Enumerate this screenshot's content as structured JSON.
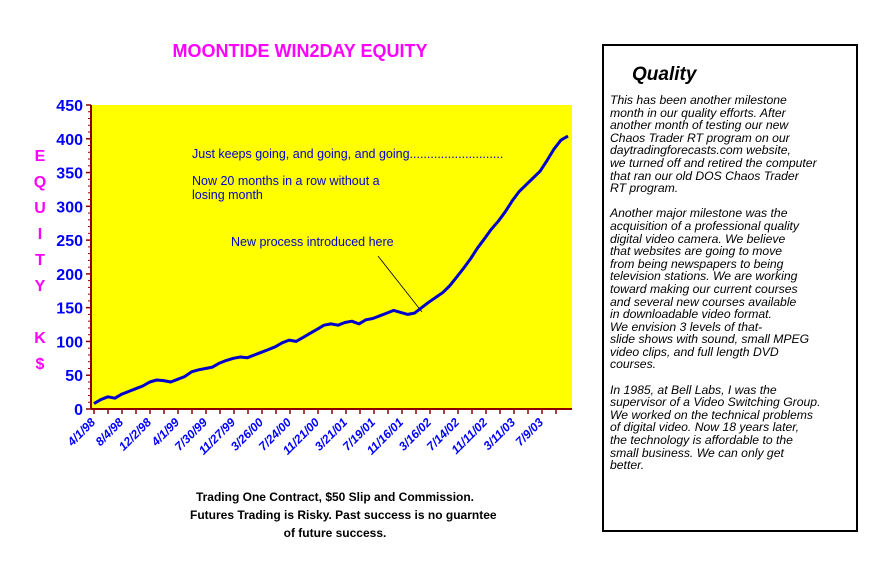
{
  "chart_data": {
    "type": "line",
    "title": "MOONTIDE WIN2DAY EQUITY",
    "ylabel_letters": [
      "E",
      "Q",
      "U",
      "I",
      "T",
      "Y",
      "",
      "K",
      "$"
    ],
    "ylim": [
      0,
      450
    ],
    "yticks": [
      "0",
      "50",
      "100",
      "150",
      "200",
      "250",
      "300",
      "350",
      "400",
      "450"
    ],
    "xtick_labels": [
      "4/1/98",
      "8/4/98",
      "12/2/98",
      "4/1/99",
      "7/30/99",
      "11/27/99",
      "3/26/00",
      "7/24/00",
      "11/21/00",
      "3/21/01",
      "7/19/01",
      "11/16/01",
      "3/16/02",
      "7/14/02",
      "11/11/02",
      "3/11/03",
      "7/9/03"
    ],
    "grid": false,
    "series": [
      {
        "values": [
          [
            0,
            8
          ],
          [
            0.3,
            14
          ],
          [
            0.6,
            18
          ],
          [
            0.9,
            16
          ],
          [
            1.2,
            22
          ],
          [
            1.5,
            26
          ],
          [
            1.8,
            30
          ],
          [
            2.1,
            34
          ],
          [
            2.4,
            40
          ],
          [
            2.7,
            43
          ],
          [
            3.0,
            42
          ],
          [
            3.3,
            40
          ],
          [
            3.6,
            44
          ],
          [
            3.9,
            48
          ],
          [
            4.2,
            55
          ],
          [
            4.5,
            58
          ],
          [
            4.8,
            60
          ],
          [
            5.1,
            62
          ],
          [
            5.4,
            68
          ],
          [
            5.7,
            72
          ],
          [
            6.0,
            75
          ],
          [
            6.3,
            77
          ],
          [
            6.6,
            76
          ],
          [
            6.9,
            80
          ],
          [
            7.2,
            84
          ],
          [
            7.5,
            88
          ],
          [
            7.8,
            92
          ],
          [
            8.1,
            98
          ],
          [
            8.4,
            102
          ],
          [
            8.7,
            100
          ],
          [
            9.0,
            106
          ],
          [
            9.3,
            112
          ],
          [
            9.6,
            118
          ],
          [
            9.9,
            124
          ],
          [
            10.2,
            126
          ],
          [
            10.5,
            124
          ],
          [
            10.8,
            128
          ],
          [
            11.1,
            130
          ],
          [
            11.4,
            126
          ],
          [
            11.7,
            132
          ],
          [
            12.0,
            134
          ],
          [
            12.3,
            138
          ],
          [
            12.6,
            142
          ],
          [
            12.9,
            146
          ],
          [
            13.2,
            143
          ],
          [
            13.5,
            140
          ],
          [
            13.8,
            142
          ],
          [
            14.1,
            150
          ],
          [
            14.4,
            158
          ],
          [
            14.7,
            165
          ],
          [
            15.0,
            172
          ],
          [
            15.3,
            182
          ],
          [
            15.6,
            195
          ],
          [
            15.9,
            208
          ],
          [
            16.2,
            222
          ],
          [
            16.5,
            238
          ],
          [
            16.8,
            252
          ],
          [
            17.1,
            266
          ],
          [
            17.4,
            278
          ],
          [
            17.7,
            292
          ],
          [
            18.0,
            308
          ],
          [
            18.3,
            322
          ],
          [
            18.6,
            332
          ],
          [
            18.9,
            342
          ],
          [
            19.2,
            352
          ],
          [
            19.5,
            368
          ],
          [
            19.8,
            385
          ],
          [
            20.1,
            398
          ],
          [
            20.4,
            404
          ]
        ]
      }
    ],
    "annotations": [
      "Just keeps going, and going, and going...........................",
      "Now 20 months in a row without a",
      "losing month",
      "New process introduced here"
    ]
  },
  "notes": [
    "Trading One Contract, $50 Slip and Commission.",
    "Futures Trading is Risky. Past success is no guarntee",
    "of future success."
  ],
  "quality": {
    "title": "Quality",
    "paragraphs": [
      [
        "This has been another milestone",
        "month in our quality efforts. After",
        "another month of testing our new",
        "Chaos Trader RT program on our",
        "daytradingforecasts.com website,",
        "we turned off and retired the computer",
        "that ran our old DOS Chaos Trader",
        "RT program."
      ],
      [
        "Another major milestone was the",
        "acquisition of a professional quality",
        "digital video camera. We believe",
        "that websites are going to move",
        "from being newspapers to being",
        "television stations. We are working",
        "toward making our current courses",
        "and several new courses available",
        "in downloadable video format.",
        "We envision 3 levels of that-",
        "slide shows with sound, small MPEG",
        "video clips, and full length DVD",
        "courses."
      ],
      [
        "In 1985, at Bell Labs, I was the",
        "supervisor of a Video Switching Group.",
        "We worked on the technical problems",
        "of digital video. Now 18 years later,",
        "the technology is  affordable to the",
        "small business.  We can only get",
        "better."
      ]
    ]
  },
  "colors": {
    "plot_bg": "#ffff00",
    "line": "#0000cc",
    "title": "#ff00ff",
    "ylabel": "#ff00ff",
    "axis": "#8b0000",
    "ticklabels": "#0000ff",
    "annotation": "#0000cc"
  }
}
